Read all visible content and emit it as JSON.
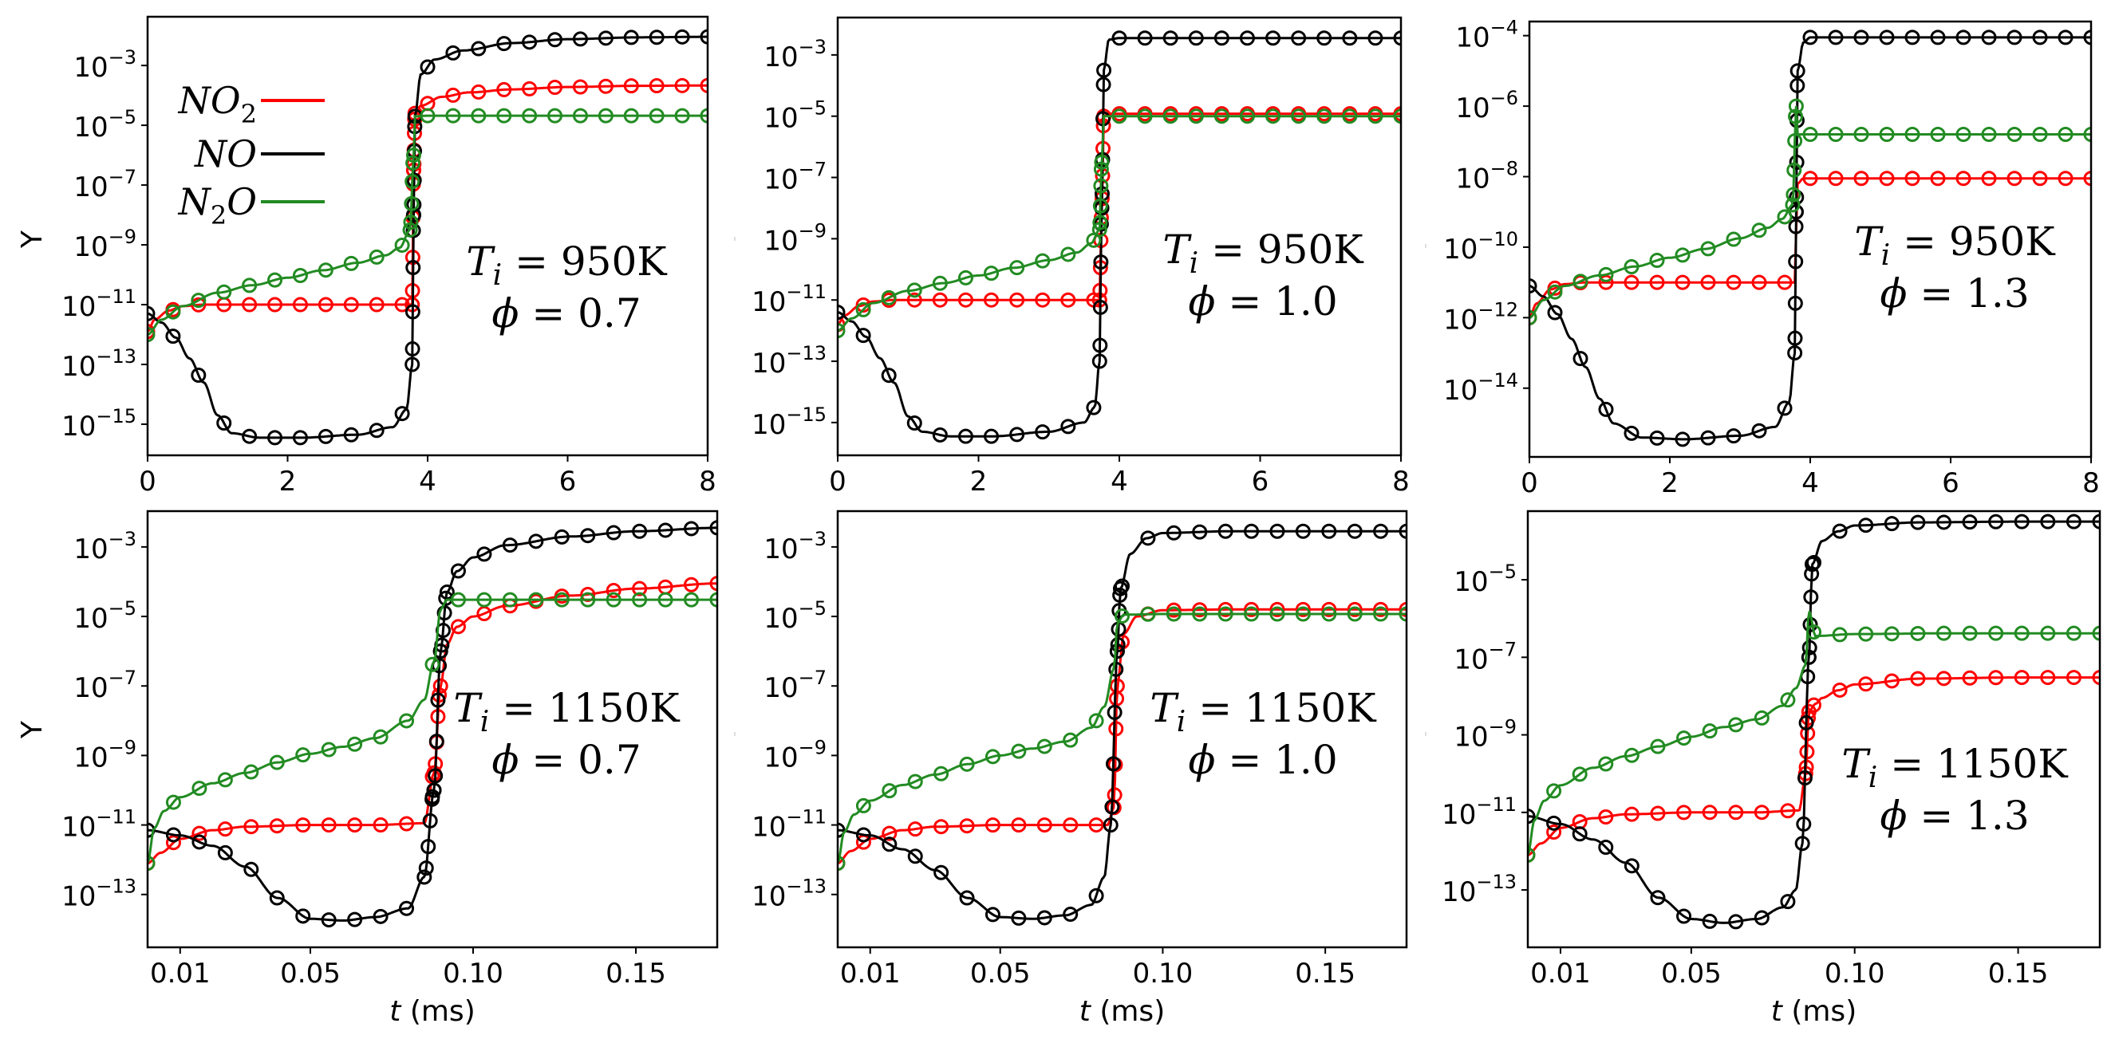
{
  "figure": {
    "legend": {
      "placement": "top-left of first panel",
      "entries": [
        {
          "label": "NO",
          "sub": "2",
          "suffix": "",
          "series": "NO2",
          "color": "#ff0000"
        },
        {
          "label": "NO",
          "sub": "",
          "suffix": "",
          "series": "NO",
          "color": "#000000"
        },
        {
          "label": "N",
          "sub": "2",
          "suffix": "O",
          "series": "N2O",
          "color": "#228b22"
        }
      ]
    },
    "colors": {
      "NO2": "#ff0000",
      "NO": "#000000",
      "N2O": "#228b22",
      "axes": "#000000"
    }
  },
  "chart_data": [
    {
      "type": "line",
      "panel": "top-left",
      "annotation": [
        "T_i = 950K",
        "φ = 0.7"
      ],
      "annotation_T": "950K",
      "annotation_phi": "0.7",
      "xlabel": "",
      "ylabel": "Y",
      "yscale": "log",
      "xlim": [
        0,
        8
      ],
      "ylim_log10": [
        -16.04,
        -1.37
      ],
      "xticks": [
        0,
        2,
        4,
        6,
        8
      ],
      "xtick_labels": [
        "0",
        "2",
        "4",
        "6",
        "8"
      ],
      "yticks_exp": [
        -3,
        -5,
        -7,
        -9,
        -11,
        -13,
        -15
      ],
      "markers": "open circles (reference data) on solid lines (model)",
      "series": [
        {
          "name": "NO2",
          "x": [
            0,
            0.1,
            0.3,
            0.5,
            0.8,
            1.5,
            2.5,
            3.5,
            3.78,
            3.8,
            3.82,
            3.9,
            4.2,
            4.6,
            5.2,
            6,
            7,
            8
          ],
          "log10y": [
            -11.9,
            -11.5,
            -11.2,
            -11.05,
            -11.0,
            -11.0,
            -11.0,
            -11.0,
            -11.0,
            -6.5,
            -4.6,
            -4.35,
            -4.05,
            -3.9,
            -3.8,
            -3.72,
            -3.68,
            -3.67
          ]
        },
        {
          "name": "NO",
          "x": [
            0,
            0.2,
            0.4,
            0.6,
            0.8,
            1.0,
            1.2,
            1.6,
            2.2,
            3.0,
            3.5,
            3.7,
            3.78,
            3.8,
            3.82,
            3.9,
            4.1,
            4.5,
            5.2,
            6,
            7,
            8
          ],
          "log10y": [
            -11.3,
            -11.6,
            -12.1,
            -12.8,
            -13.6,
            -14.7,
            -15.3,
            -15.45,
            -15.45,
            -15.35,
            -15.1,
            -14.5,
            -13.0,
            -8.0,
            -4.7,
            -3.3,
            -2.8,
            -2.5,
            -2.25,
            -2.12,
            -2.06,
            -2.04
          ]
        },
        {
          "name": "N2O",
          "x": [
            0,
            0.2,
            0.5,
            1.0,
            1.5,
            2.0,
            2.5,
            3.0,
            3.4,
            3.6,
            3.75,
            3.8,
            3.82,
            4.0,
            5,
            6,
            7,
            8
          ],
          "log10y": [
            -12.0,
            -11.5,
            -11.05,
            -10.6,
            -10.35,
            -10.1,
            -9.85,
            -9.6,
            -9.35,
            -9.1,
            -8.5,
            -6.0,
            -4.7,
            -4.68,
            -4.68,
            -4.68,
            -4.68,
            -4.68
          ]
        }
      ]
    },
    {
      "type": "line",
      "panel": "top-middle",
      "annotation_T": "950K",
      "annotation_phi": "1.0",
      "xlabel": "",
      "ylabel": "",
      "yscale": "log",
      "xlim": [
        0,
        8
      ],
      "ylim_log10": [
        -16.07,
        -1.78
      ],
      "xticks": [
        0,
        2,
        4,
        6,
        8
      ],
      "xtick_labels": [
        "0",
        "2",
        "4",
        "6",
        "8"
      ],
      "yticks_exp": [
        -3,
        -5,
        -7,
        -9,
        -11,
        -13,
        -15
      ],
      "series": [
        {
          "name": "NO2",
          "x": [
            0,
            0.1,
            0.3,
            0.5,
            0.8,
            1.5,
            2.5,
            3.5,
            3.72,
            3.75,
            3.78,
            3.85,
            5,
            6,
            7,
            8
          ],
          "log10y": [
            -11.8,
            -11.5,
            -11.2,
            -11.05,
            -11.0,
            -11.0,
            -11.0,
            -11.0,
            -11.0,
            -8.0,
            -5.0,
            -4.92,
            -4.92,
            -4.92,
            -4.92,
            -4.92
          ]
        },
        {
          "name": "NO",
          "x": [
            0,
            0.2,
            0.4,
            0.6,
            0.8,
            1.0,
            1.2,
            1.6,
            2.2,
            3.0,
            3.5,
            3.65,
            3.72,
            3.75,
            3.78,
            3.85,
            4.0,
            5,
            6,
            7,
            8
          ],
          "log10y": [
            -11.4,
            -11.7,
            -12.2,
            -12.9,
            -13.7,
            -14.8,
            -15.3,
            -15.45,
            -15.45,
            -15.3,
            -15.0,
            -14.5,
            -13.0,
            -8.0,
            -3.5,
            -2.5,
            -2.45,
            -2.45,
            -2.45,
            -2.45,
            -2.45
          ]
        },
        {
          "name": "N2O",
          "x": [
            0,
            0.2,
            0.5,
            1.0,
            1.5,
            2.0,
            2.5,
            3.0,
            3.4,
            3.6,
            3.72,
            3.75,
            3.78,
            3.9,
            5,
            6,
            7,
            8
          ],
          "log10y": [
            -12.0,
            -11.6,
            -11.1,
            -10.7,
            -10.45,
            -10.2,
            -9.95,
            -9.7,
            -9.45,
            -9.15,
            -8.7,
            -6.5,
            -5.0,
            -5.0,
            -5.0,
            -5.0,
            -5.0,
            -5.0
          ]
        }
      ]
    },
    {
      "type": "line",
      "panel": "top-right",
      "annotation_T": "950K",
      "annotation_phi": "1.3",
      "xlabel": "",
      "ylabel": "",
      "yscale": "log",
      "xlim": [
        0,
        8
      ],
      "ylim_log10": [
        -15.95,
        -3.6
      ],
      "xticks": [
        0,
        2,
        4,
        6,
        8
      ],
      "xtick_labels": [
        "0",
        "2",
        "4",
        "6",
        "8"
      ],
      "yticks_exp": [
        -4,
        -6,
        -8,
        -10,
        -12,
        -14
      ],
      "series": [
        {
          "name": "NO2",
          "x": [
            0,
            0.1,
            0.3,
            0.5,
            0.8,
            1.5,
            2.5,
            3.5,
            3.78,
            3.8,
            3.82,
            3.9,
            5,
            6,
            7,
            8
          ],
          "log10y": [
            -12.0,
            -11.6,
            -11.2,
            -11.05,
            -11.0,
            -11.0,
            -11.0,
            -11.0,
            -11.0,
            -9.5,
            -8.2,
            -8.05,
            -8.05,
            -8.05,
            -8.05,
            -8.05
          ]
        },
        {
          "name": "NO",
          "x": [
            0,
            0.2,
            0.4,
            0.6,
            0.8,
            1.0,
            1.2,
            1.6,
            2.2,
            3.0,
            3.5,
            3.7,
            3.78,
            3.8,
            3.82,
            3.9,
            4.0,
            5,
            6,
            7,
            8
          ],
          "log10y": [
            -11.1,
            -11.4,
            -11.9,
            -12.6,
            -13.4,
            -14.3,
            -15.0,
            -15.4,
            -15.45,
            -15.35,
            -15.1,
            -14.4,
            -13.0,
            -9.0,
            -5.0,
            -4.2,
            -4.05,
            -4.05,
            -4.05,
            -4.05,
            -4.05
          ]
        },
        {
          "name": "N2O",
          "x": [
            0,
            0.2,
            0.5,
            1.0,
            1.5,
            2.0,
            2.5,
            3.0,
            3.4,
            3.6,
            3.75,
            3.8,
            3.82,
            3.9,
            5,
            6,
            7,
            8
          ],
          "log10y": [
            -12.0,
            -11.5,
            -11.1,
            -10.8,
            -10.55,
            -10.3,
            -10.05,
            -9.75,
            -9.45,
            -9.2,
            -8.8,
            -6.0,
            -6.8,
            -6.8,
            -6.8,
            -6.8,
            -6.8,
            -6.8
          ]
        }
      ]
    },
    {
      "type": "line",
      "panel": "bottom-left",
      "annotation_T": "1150K",
      "annotation_phi": "0.7",
      "xlabel": "t (ms)",
      "ylabel": "Y",
      "yscale": "log",
      "xlim": [
        0,
        0.175
      ],
      "ylim_log10": [
        -14.52,
        -1.97
      ],
      "xticks": [
        0.01,
        0.05,
        0.1,
        0.15
      ],
      "xtick_labels": [
        "0.01",
        "0.05",
        "0.10",
        "0.15"
      ],
      "yticks_exp": [
        -3,
        -5,
        -7,
        -9,
        -11,
        -13
      ],
      "series": [
        {
          "name": "NO2",
          "x": [
            0,
            0.004,
            0.01,
            0.02,
            0.03,
            0.05,
            0.07,
            0.085,
            0.088,
            0.09,
            0.092,
            0.095,
            0.1,
            0.11,
            0.13,
            0.15,
            0.175
          ],
          "log10y": [
            -12.1,
            -11.8,
            -11.4,
            -11.15,
            -11.05,
            -11.0,
            -11.0,
            -10.95,
            -9.5,
            -7.0,
            -5.8,
            -5.3,
            -5.0,
            -4.7,
            -4.4,
            -4.2,
            -4.05
          ]
        },
        {
          "name": "NO",
          "x": [
            0,
            0.01,
            0.02,
            0.03,
            0.04,
            0.05,
            0.06,
            0.07,
            0.08,
            0.085,
            0.088,
            0.09,
            0.092,
            0.095,
            0.1,
            0.11,
            0.13,
            0.15,
            0.175
          ],
          "log10y": [
            -11.15,
            -11.3,
            -11.6,
            -12.2,
            -13.1,
            -13.7,
            -13.75,
            -13.65,
            -13.4,
            -12.5,
            -10.0,
            -6.0,
            -4.3,
            -3.7,
            -3.3,
            -2.95,
            -2.7,
            -2.55,
            -2.45
          ]
        },
        {
          "name": "N2O",
          "x": [
            0,
            0.002,
            0.005,
            0.01,
            0.02,
            0.03,
            0.04,
            0.05,
            0.06,
            0.07,
            0.08,
            0.085,
            0.088,
            0.09,
            0.092,
            0.1,
            0.13,
            0.15,
            0.175
          ],
          "log10y": [
            -12.1,
            -11.1,
            -10.6,
            -10.2,
            -9.8,
            -9.5,
            -9.2,
            -8.95,
            -8.75,
            -8.5,
            -8.0,
            -7.4,
            -6.3,
            -4.8,
            -4.52,
            -4.52,
            -4.52,
            -4.52,
            -4.52
          ]
        }
      ]
    },
    {
      "type": "line",
      "panel": "bottom-middle",
      "annotation_T": "1150K",
      "annotation_phi": "1.0",
      "xlabel": "t (ms)",
      "ylabel": "",
      "yscale": "log",
      "xlim": [
        0,
        0.175
      ],
      "ylim_log10": [
        -14.52,
        -1.97
      ],
      "xticks": [
        0.01,
        0.05,
        0.1,
        0.15
      ],
      "xtick_labels": [
        "0.01",
        "0.05",
        "0.10",
        "0.15"
      ],
      "yticks_exp": [
        -3,
        -5,
        -7,
        -9,
        -11,
        -13
      ],
      "series": [
        {
          "name": "NO2",
          "x": [
            0,
            0.004,
            0.01,
            0.02,
            0.03,
            0.05,
            0.07,
            0.083,
            0.085,
            0.086,
            0.088,
            0.092,
            0.1,
            0.12,
            0.15,
            0.175
          ],
          "log10y": [
            -12.1,
            -11.75,
            -11.4,
            -11.15,
            -11.05,
            -11.0,
            -11.0,
            -11.0,
            -10.5,
            -7.0,
            -5.5,
            -5.0,
            -4.82,
            -4.8,
            -4.8,
            -4.8
          ]
        },
        {
          "name": "NO",
          "x": [
            0,
            0.01,
            0.02,
            0.03,
            0.04,
            0.05,
            0.06,
            0.07,
            0.078,
            0.082,
            0.084,
            0.086,
            0.087,
            0.09,
            0.095,
            0.1,
            0.12,
            0.15,
            0.175
          ],
          "log10y": [
            -11.15,
            -11.3,
            -11.7,
            -12.3,
            -13.1,
            -13.65,
            -13.7,
            -13.6,
            -13.3,
            -12.5,
            -11.0,
            -6.0,
            -4.2,
            -3.2,
            -2.75,
            -2.6,
            -2.55,
            -2.55,
            -2.55
          ]
        },
        {
          "name": "N2O",
          "x": [
            0,
            0.002,
            0.005,
            0.01,
            0.02,
            0.03,
            0.04,
            0.05,
            0.06,
            0.07,
            0.078,
            0.082,
            0.085,
            0.086,
            0.088,
            0.1,
            0.13,
            0.15,
            0.175
          ],
          "log10y": [
            -12.1,
            -11.2,
            -10.7,
            -10.3,
            -9.85,
            -9.55,
            -9.25,
            -9.0,
            -8.8,
            -8.6,
            -8.2,
            -7.6,
            -6.5,
            -5.2,
            -4.95,
            -4.93,
            -4.93,
            -4.93,
            -4.93
          ]
        }
      ]
    },
    {
      "type": "line",
      "panel": "bottom-right",
      "annotation_T": "1150K",
      "annotation_phi": "1.3",
      "xlabel": "t (ms)",
      "ylabel": "",
      "yscale": "log",
      "xlim": [
        0,
        0.175
      ],
      "ylim_log10": [
        -14.48,
        -3.23
      ],
      "xticks": [
        0.01,
        0.05,
        0.1,
        0.15
      ],
      "xtick_labels": [
        "0.01",
        "0.05",
        "0.10",
        "0.15"
      ],
      "yticks_exp": [
        -5,
        -7,
        -9,
        -11,
        -13
      ],
      "series": [
        {
          "name": "NO2",
          "x": [
            0,
            0.004,
            0.01,
            0.02,
            0.03,
            0.05,
            0.07,
            0.083,
            0.085,
            0.086,
            0.088,
            0.09,
            0.095,
            0.1,
            0.12,
            0.15,
            0.175
          ],
          "log10y": [
            -12.1,
            -11.8,
            -11.4,
            -11.15,
            -11.05,
            -11.0,
            -11.0,
            -10.95,
            -10.0,
            -8.4,
            -8.2,
            -8.05,
            -7.85,
            -7.7,
            -7.55,
            -7.52,
            -7.52
          ]
        },
        {
          "name": "NO",
          "x": [
            0,
            0.01,
            0.02,
            0.03,
            0.04,
            0.05,
            0.06,
            0.07,
            0.078,
            0.082,
            0.084,
            0.086,
            0.087,
            0.09,
            0.095,
            0.1,
            0.12,
            0.15,
            0.175
          ],
          "log10y": [
            -11.1,
            -11.3,
            -11.7,
            -12.3,
            -13.2,
            -13.75,
            -13.85,
            -13.75,
            -13.45,
            -13.0,
            -11.8,
            -7.0,
            -4.6,
            -4.0,
            -3.75,
            -3.6,
            -3.52,
            -3.5,
            -3.5
          ]
        },
        {
          "name": "N2O",
          "x": [
            0,
            0.002,
            0.005,
            0.01,
            0.02,
            0.03,
            0.04,
            0.05,
            0.06,
            0.07,
            0.078,
            0.082,
            0.085,
            0.086,
            0.088,
            0.1,
            0.13,
            0.15,
            0.175
          ],
          "log10y": [
            -12.1,
            -11.2,
            -10.7,
            -10.3,
            -9.85,
            -9.55,
            -9.3,
            -9.05,
            -8.8,
            -8.6,
            -8.25,
            -7.8,
            -7.2,
            -5.8,
            -6.45,
            -6.4,
            -6.38,
            -6.38,
            -6.38
          ]
        }
      ]
    }
  ]
}
